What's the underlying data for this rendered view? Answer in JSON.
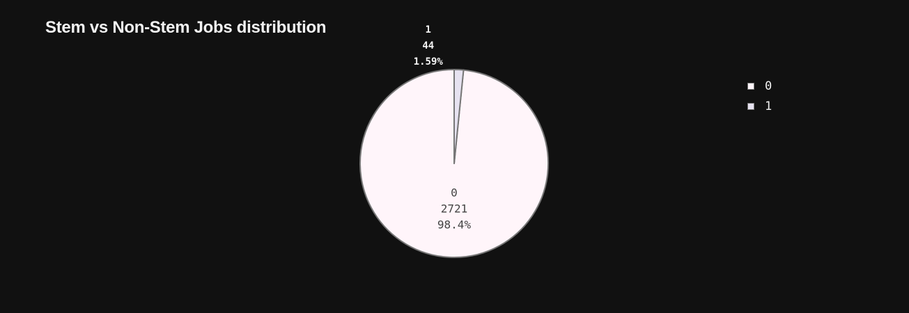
{
  "chart_data": {
    "type": "pie",
    "title": "Stem vs Non-Stem Jobs distribution",
    "slices": [
      {
        "label": "0",
        "value": 2721,
        "percent": "98.4%",
        "color": "#fff5fa"
      },
      {
        "label": "1",
        "value": 44,
        "percent": "1.59%",
        "color": "#e6e2f0"
      }
    ],
    "slice_border_color": "#777777",
    "background": "#111111",
    "legend": {
      "position": "top-right",
      "items": [
        "0",
        "1"
      ]
    }
  }
}
